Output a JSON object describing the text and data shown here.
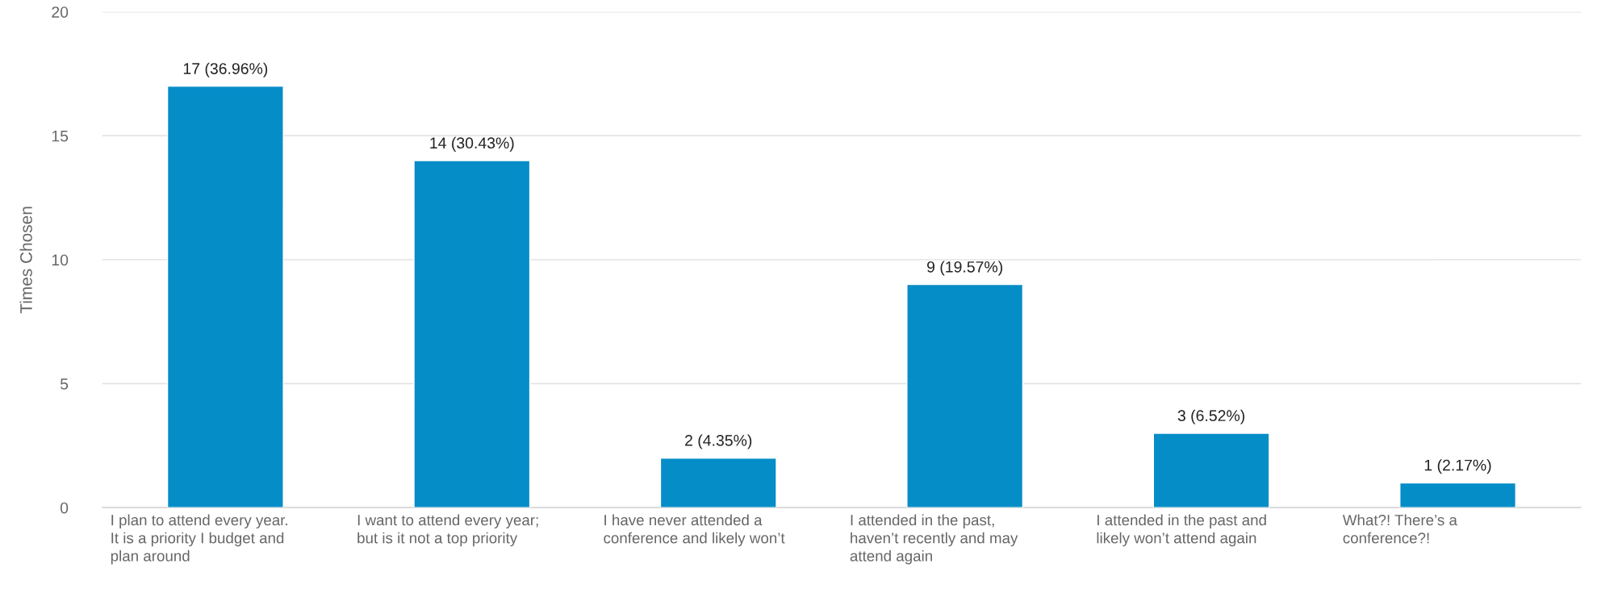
{
  "chart_data": {
    "type": "bar",
    "ylabel": "Times Chosen",
    "categories": [
      "I plan to attend every year.\nIt is a priority I budget and\nplan around",
      "I want to attend every year;\nbut is it not a top priority",
      "I have never attended a\nconference and likely won’t",
      "I attended in the past,\nhaven’t recently and may\nattend again",
      "I attended in the past and\nlikely won’t attend again",
      "What?! There’s a\nconference?!"
    ],
    "values": [
      17,
      14,
      2,
      9,
      3,
      1
    ],
    "value_labels": [
      "17 (36.96%)",
      "14 (30.43%)",
      "2 (4.35%)",
      "9 (19.57%)",
      "3 (6.52%)",
      "1 (2.17%)"
    ],
    "color": "#058dc7",
    "ylim": [
      0,
      20
    ],
    "yticks": [
      0,
      5,
      10,
      15,
      20
    ],
    "grid": "y"
  }
}
